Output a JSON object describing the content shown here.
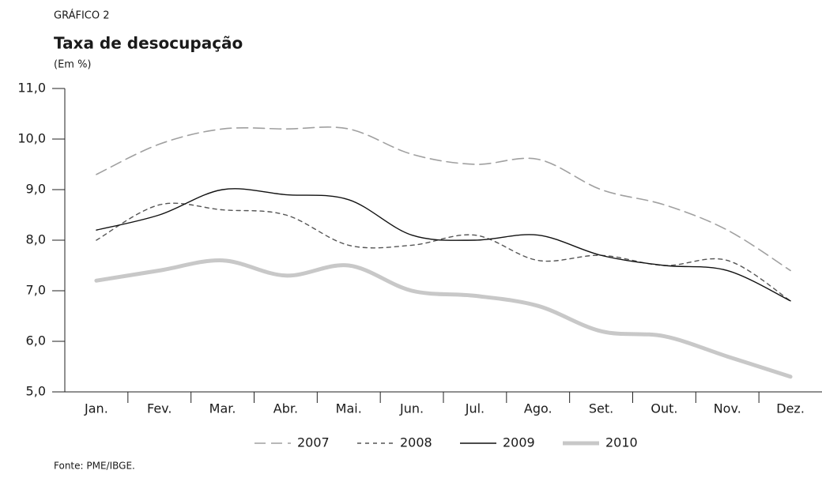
{
  "chart_data": {
    "type": "line",
    "kicker": "GRÁFICO 2",
    "title": "Taxa de desocupação",
    "subtitle": "(Em %)",
    "source": "Fonte: PME/IBGE.",
    "categories": [
      "Jan.",
      "Fev.",
      "Mar.",
      "Abr.",
      "Mai.",
      "Jun.",
      "Jul.",
      "Ago.",
      "Set.",
      "Out.",
      "Nov.",
      "Dez."
    ],
    "series": [
      {
        "name": "2007",
        "color": "#a0a0a0",
        "line_style": "dashed",
        "values": [
          9.3,
          9.9,
          10.2,
          10.2,
          10.2,
          9.7,
          9.5,
          9.6,
          9.0,
          8.7,
          8.2,
          7.4
        ]
      },
      {
        "name": "2008",
        "color": "#555555",
        "line_style": "dotted",
        "values": [
          8.0,
          8.7,
          8.6,
          8.5,
          7.9,
          7.9,
          8.1,
          7.6,
          7.7,
          7.5,
          7.6,
          6.8
        ]
      },
      {
        "name": "2009",
        "color": "#111111",
        "line_style": "solid",
        "values": [
          8.2,
          8.5,
          9.0,
          8.9,
          8.8,
          8.1,
          8.0,
          8.1,
          7.7,
          7.5,
          7.4,
          6.8
        ]
      },
      {
        "name": "2010",
        "color": "#c8c8c8",
        "line_style": "thick",
        "values": [
          7.2,
          7.4,
          7.6,
          7.3,
          7.5,
          7.0,
          6.9,
          6.7,
          6.2,
          6.1,
          5.7,
          5.3
        ]
      }
    ],
    "ylim": [
      5,
      11
    ],
    "yticks": [
      {
        "value": 5,
        "label": "5,0"
      },
      {
        "value": 6,
        "label": "6,0"
      },
      {
        "value": 7,
        "label": "7,0"
      },
      {
        "value": 8,
        "label": "8,0"
      },
      {
        "value": 9,
        "label": "9,0"
      },
      {
        "value": 10,
        "label": "10,0"
      },
      {
        "value": 11,
        "label": "11,0"
      }
    ],
    "legend": "bottom"
  }
}
